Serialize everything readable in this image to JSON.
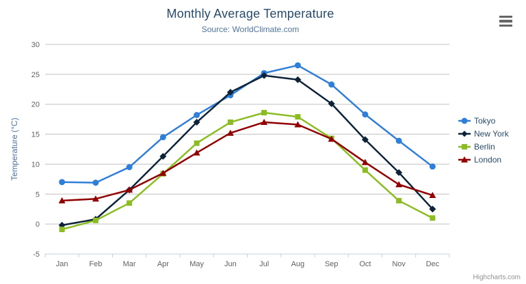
{
  "export_menu": {
    "icon": "hamburger-menu-icon"
  },
  "credits": {
    "text": "Highcharts.com"
  },
  "chart_data": {
    "type": "line",
    "title": "Monthly Average Temperature",
    "subtitle": "Source: WorldClimate.com",
    "xlabel": "",
    "ylabel": "Temperature (°C)",
    "ylim": [
      -5,
      30
    ],
    "ytick_step": 5,
    "grid": true,
    "legend_position": "right",
    "categories": [
      "Jan",
      "Feb",
      "Mar",
      "Apr",
      "May",
      "Jun",
      "Jul",
      "Aug",
      "Sep",
      "Oct",
      "Nov",
      "Dec"
    ],
    "series": [
      {
        "name": "Tokyo",
        "color": "#2f7ed8",
        "marker": "circle",
        "values": [
          7.0,
          6.9,
          9.5,
          14.5,
          18.2,
          21.5,
          25.2,
          26.5,
          23.3,
          18.3,
          13.9,
          9.6
        ]
      },
      {
        "name": "New York",
        "color": "#0d233a",
        "marker": "diamond",
        "values": [
          -0.2,
          0.8,
          5.7,
          11.3,
          17.0,
          22.0,
          24.8,
          24.1,
          20.1,
          14.1,
          8.6,
          2.5
        ]
      },
      {
        "name": "Berlin",
        "color": "#8bbc21",
        "marker": "square",
        "values": [
          -0.9,
          0.6,
          3.5,
          8.4,
          13.5,
          17.0,
          18.6,
          17.9,
          14.3,
          9.0,
          3.9,
          1.0
        ]
      },
      {
        "name": "London",
        "color": "#910000",
        "marker": "triangle",
        "values": [
          3.9,
          4.2,
          5.7,
          8.5,
          11.9,
          15.2,
          17.0,
          16.6,
          14.2,
          10.3,
          6.6,
          4.8
        ]
      }
    ],
    "axis_colors": {
      "grid_line": "#c0c0c0",
      "axis_line": "#c0d0e0",
      "tick_label": "#606060",
      "axis_title": "#4d759e"
    }
  }
}
